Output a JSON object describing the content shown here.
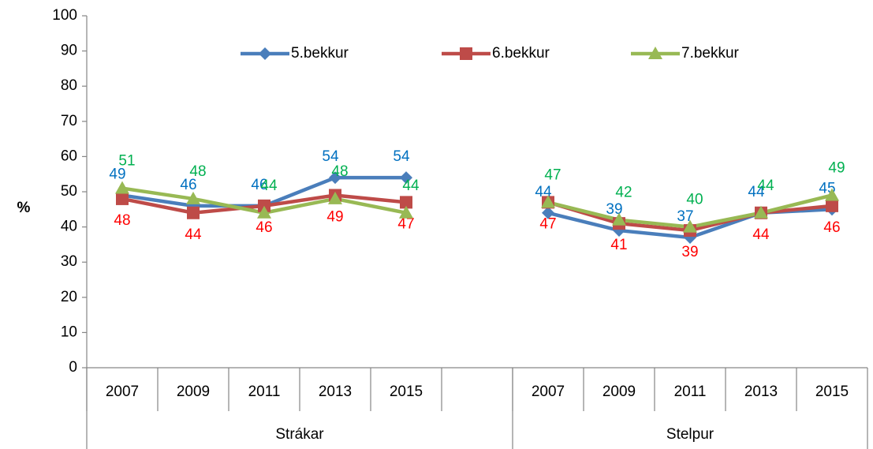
{
  "chart_data": {
    "type": "line",
    "y_label": "%",
    "categories": [
      "2007",
      "2009",
      "2011",
      "2013",
      "2015",
      null,
      "2007",
      "2009",
      "2011",
      "2013",
      "2015"
    ],
    "groups": [
      "Strákar",
      "Stelpur"
    ],
    "series": [
      {
        "name": "5.bekkur",
        "color": "#4a7ebb",
        "label_color": "#0070c0",
        "marker": "diamond",
        "values": [
          49,
          46,
          46,
          54,
          54,
          null,
          44,
          39,
          37,
          44,
          45
        ]
      },
      {
        "name": "6.bekkur",
        "color": "#be4b48",
        "label_color": "#ff0000",
        "marker": "square",
        "values": [
          48,
          44,
          46,
          49,
          47,
          null,
          47,
          41,
          39,
          44,
          46
        ]
      },
      {
        "name": "7.bekkur",
        "color": "#98b954",
        "label_color": "#00b050",
        "marker": "triangle",
        "values": [
          51,
          48,
          44,
          48,
          44,
          null,
          47,
          42,
          40,
          44,
          49
        ]
      }
    ],
    "ylim": [
      0,
      100
    ],
    "yticks": [
      0,
      10,
      20,
      30,
      40,
      50,
      60,
      70,
      80,
      90,
      100
    ],
    "grid": false
  }
}
